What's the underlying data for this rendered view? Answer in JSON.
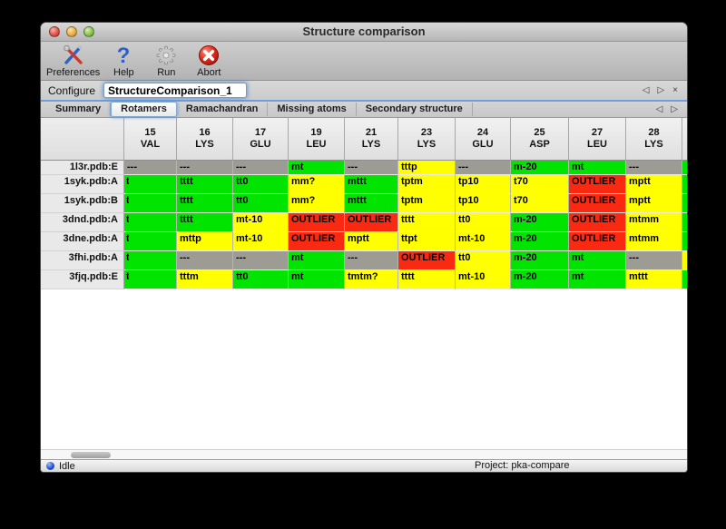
{
  "window": {
    "title": "Structure comparison"
  },
  "toolbar": {
    "items": [
      {
        "label": "Preferences",
        "icon": "tools-icon"
      },
      {
        "label": "Help",
        "icon": "question-icon"
      },
      {
        "label": "Run",
        "icon": "gear-icon"
      },
      {
        "label": "Abort",
        "icon": "abort-icon"
      }
    ]
  },
  "configure": {
    "label": "Configure",
    "value": "StructureComparison_1"
  },
  "nav": {
    "prev": "◁",
    "next": "▷",
    "close": "×"
  },
  "tabs": {
    "items": [
      {
        "label": "Summary",
        "selected": false
      },
      {
        "label": "Rotamers",
        "selected": true
      },
      {
        "label": "Ramachandran",
        "selected": false
      },
      {
        "label": "Missing atoms",
        "selected": false
      },
      {
        "label": "Secondary structure",
        "selected": false
      }
    ]
  },
  "colors": {
    "green": "#00e400",
    "yellow": "#ffff00",
    "red": "#fa2a12",
    "gray": "#9c9c94",
    "focus_ring": "#6f9fd8"
  },
  "table": {
    "columns": [
      {
        "num": "15",
        "res": "VAL"
      },
      {
        "num": "16",
        "res": "LYS"
      },
      {
        "num": "17",
        "res": "GLU"
      },
      {
        "num": "19",
        "res": "LEU"
      },
      {
        "num": "21",
        "res": "LYS"
      },
      {
        "num": "23",
        "res": "LYS"
      },
      {
        "num": "24",
        "res": "GLU"
      },
      {
        "num": "25",
        "res": "ASP"
      },
      {
        "num": "27",
        "res": "LEU"
      },
      {
        "num": "28",
        "res": "LYS"
      }
    ],
    "rows": [
      {
        "label": "1l3r.pdb:E",
        "cells": [
          {
            "t": "---",
            "c": "gray"
          },
          {
            "t": "---",
            "c": "gray"
          },
          {
            "t": "---",
            "c": "gray"
          },
          {
            "t": "mt",
            "c": "green"
          },
          {
            "t": "---",
            "c": "gray"
          },
          {
            "t": "tttp",
            "c": "yellow"
          },
          {
            "t": "---",
            "c": "gray"
          },
          {
            "t": "m-20",
            "c": "green"
          },
          {
            "t": "mt",
            "c": "green"
          },
          {
            "t": "---",
            "c": "gray"
          }
        ]
      },
      {
        "label": "1syk.pdb:A",
        "cells": [
          {
            "t": "t",
            "c": "green",
            "clip": true
          },
          {
            "t": "tttt",
            "c": "green"
          },
          {
            "t": "tt0",
            "c": "green"
          },
          {
            "t": "mm?",
            "c": "yellow"
          },
          {
            "t": "mttt",
            "c": "green"
          },
          {
            "t": "tptm",
            "c": "yellow"
          },
          {
            "t": "tp10",
            "c": "yellow"
          },
          {
            "t": "t70",
            "c": "yellow"
          },
          {
            "t": "OUTLIER",
            "c": "red"
          },
          {
            "t": "mptt",
            "c": "yellow"
          }
        ]
      },
      {
        "label": "1syk.pdb:B",
        "cells": [
          {
            "t": "t",
            "c": "green",
            "clip": true
          },
          {
            "t": "tttt",
            "c": "green"
          },
          {
            "t": "tt0",
            "c": "green"
          },
          {
            "t": "mm?",
            "c": "yellow"
          },
          {
            "t": "mttt",
            "c": "green"
          },
          {
            "t": "tptm",
            "c": "yellow"
          },
          {
            "t": "tp10",
            "c": "yellow"
          },
          {
            "t": "t70",
            "c": "yellow"
          },
          {
            "t": "OUTLIER",
            "c": "red"
          },
          {
            "t": "mptt",
            "c": "yellow"
          }
        ]
      },
      {
        "label": "3dnd.pdb:A",
        "cells": [
          {
            "t": "t",
            "c": "green",
            "clip": true
          },
          {
            "t": "tttt",
            "c": "green"
          },
          {
            "t": "mt-10",
            "c": "yellow"
          },
          {
            "t": "OUTLIER",
            "c": "red"
          },
          {
            "t": "OUTLIER",
            "c": "red"
          },
          {
            "t": "tttt",
            "c": "yellow"
          },
          {
            "t": "tt0",
            "c": "yellow"
          },
          {
            "t": "m-20",
            "c": "green"
          },
          {
            "t": "OUTLIER",
            "c": "red"
          },
          {
            "t": "mtmm",
            "c": "yellow"
          }
        ]
      },
      {
        "label": "3dne.pdb:A",
        "cells": [
          {
            "t": "t",
            "c": "green",
            "clip": true
          },
          {
            "t": "mttp",
            "c": "yellow"
          },
          {
            "t": "mt-10",
            "c": "yellow"
          },
          {
            "t": "OUTLIER",
            "c": "red"
          },
          {
            "t": "mptt",
            "c": "yellow"
          },
          {
            "t": "ttpt",
            "c": "yellow"
          },
          {
            "t": "mt-10",
            "c": "yellow"
          },
          {
            "t": "m-20",
            "c": "green"
          },
          {
            "t": "OUTLIER",
            "c": "red"
          },
          {
            "t": "mtmm",
            "c": "yellow"
          }
        ]
      },
      {
        "label": "3fhi.pdb:A",
        "cells": [
          {
            "t": "t",
            "c": "green",
            "clip": true
          },
          {
            "t": "---",
            "c": "gray"
          },
          {
            "t": "---",
            "c": "gray"
          },
          {
            "t": "mt",
            "c": "green"
          },
          {
            "t": "---",
            "c": "gray"
          },
          {
            "t": "OUTLIER",
            "c": "red"
          },
          {
            "t": "tt0",
            "c": "yellow"
          },
          {
            "t": "m-20",
            "c": "green"
          },
          {
            "t": "mt",
            "c": "green"
          },
          {
            "t": "---",
            "c": "gray"
          }
        ]
      },
      {
        "label": "3fjq.pdb:E",
        "cells": [
          {
            "t": "t",
            "c": "green",
            "clip": true
          },
          {
            "t": "tttm",
            "c": "yellow"
          },
          {
            "t": "tt0",
            "c": "green"
          },
          {
            "t": "mt",
            "c": "green"
          },
          {
            "t": "tmtm?",
            "c": "yellow"
          },
          {
            "t": "tttt",
            "c": "yellow"
          },
          {
            "t": "mt-10",
            "c": "yellow"
          },
          {
            "t": "m-20",
            "c": "green"
          },
          {
            "t": "mt",
            "c": "green"
          },
          {
            "t": "mttt",
            "c": "yellow"
          }
        ]
      }
    ],
    "clipped_column_colors": [
      "green",
      "green",
      "green",
      "green",
      "green",
      "yellow",
      "green"
    ]
  },
  "status": {
    "state": "Idle",
    "project_label": "Project: pka-compare"
  }
}
